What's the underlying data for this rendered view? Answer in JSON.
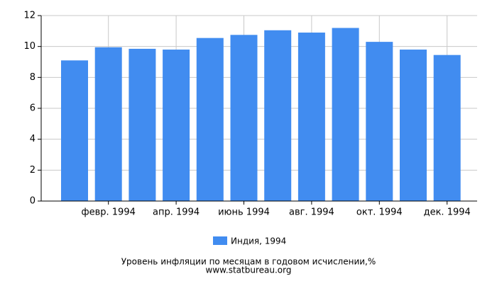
{
  "chart_data": {
    "type": "bar",
    "title": "Уровень инфляции по месяцам в годовом исчислении,%",
    "source": "www.statbureau.org",
    "categories": [
      null,
      "февр. 1994",
      null,
      "апр. 1994",
      null,
      "июнь 1994",
      null,
      "авг. 1994",
      null,
      "окт. 1994",
      null,
      "дек. 1994"
    ],
    "series": [
      {
        "name": "Индия, 1994",
        "color": "#418cf0",
        "values": [
          9.1,
          9.95,
          9.85,
          9.8,
          10.55,
          10.75,
          11.05,
          10.9,
          11.2,
          10.3,
          9.8,
          9.45
        ]
      }
    ],
    "ylim": [
      0,
      12
    ],
    "yticks": [
      0,
      2,
      4,
      6,
      8,
      10,
      12
    ],
    "grid": true,
    "legend": "bottom"
  }
}
